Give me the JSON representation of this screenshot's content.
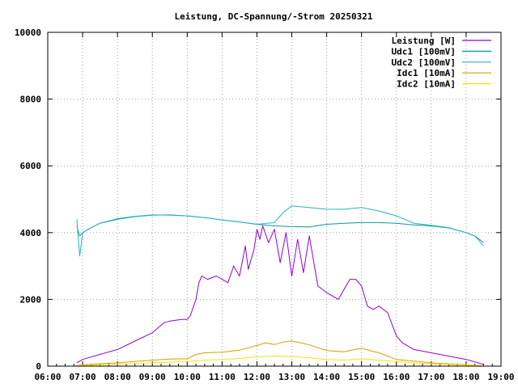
{
  "chart_data": {
    "type": "line",
    "title": "Leistung, DC-Spannung/-Strom 20250321",
    "xlabel": "",
    "ylabel": "",
    "xlim": [
      "06:00",
      "19:00"
    ],
    "ylim": [
      0,
      10000
    ],
    "grid": true,
    "legend_position": "top-right",
    "x_ticks": [
      "06:00",
      "07:00",
      "08:00",
      "09:00",
      "10:00",
      "11:00",
      "12:00",
      "13:00",
      "14:00",
      "15:00",
      "16:00",
      "17:00",
      "18:00",
      "19:00"
    ],
    "y_ticks": [
      "0",
      "2000",
      "4000",
      "6000",
      "8000",
      "10000"
    ],
    "series": [
      {
        "name": "Leistung [W]",
        "color": "#9400d3",
        "x": [
          "06:50",
          "07:00",
          "07:30",
          "08:00",
          "08:30",
          "09:00",
          "09:20",
          "09:30",
          "09:50",
          "10:00",
          "10:05",
          "10:15",
          "10:20",
          "10:25",
          "10:35",
          "10:50",
          "11:00",
          "11:10",
          "11:20",
          "11:30",
          "11:40",
          "11:45",
          "11:55",
          "12:00",
          "12:05",
          "12:10",
          "12:20",
          "12:30",
          "12:40",
          "12:50",
          "13:00",
          "13:10",
          "13:20",
          "13:30",
          "13:45",
          "14:00",
          "14:20",
          "14:40",
          "14:50",
          "15:00",
          "15:10",
          "15:20",
          "15:30",
          "15:45",
          "16:00",
          "16:10",
          "16:30",
          "17:00",
          "17:30",
          "18:00",
          "18:30"
        ],
        "y": [
          100,
          200,
          350,
          500,
          750,
          1000,
          1300,
          1350,
          1400,
          1400,
          1500,
          2000,
          2500,
          2700,
          2600,
          2700,
          2600,
          2500,
          3000,
          2700,
          3600,
          2900,
          3500,
          4100,
          3800,
          4200,
          3700,
          4100,
          3100,
          4000,
          2700,
          3800,
          2800,
          3900,
          2400,
          2200,
          2000,
          2600,
          2600,
          2400,
          1800,
          1700,
          1800,
          1600,
          900,
          700,
          500,
          400,
          300,
          200,
          50
        ]
      },
      {
        "name": "Udc1 [100mV]",
        "color": "#009e9e",
        "x": [
          "06:50",
          "06:55",
          "07:00",
          "07:15",
          "07:30",
          "08:00",
          "08:30",
          "09:00",
          "09:30",
          "10:00",
          "10:30",
          "11:00",
          "11:30",
          "12:00",
          "12:30",
          "13:00",
          "13:30",
          "14:00",
          "14:30",
          "15:00",
          "15:30",
          "16:00",
          "16:30",
          "17:00",
          "17:30",
          "18:00",
          "18:15",
          "18:30"
        ],
        "y": [
          4200,
          3900,
          4000,
          4150,
          4280,
          4400,
          4480,
          4520,
          4530,
          4500,
          4450,
          4380,
          4320,
          4250,
          4200,
          4180,
          4170,
          4250,
          4280,
          4300,
          4300,
          4280,
          4230,
          4200,
          4140,
          4000,
          3900,
          3700
        ]
      },
      {
        "name": "Udc2 [100mV]",
        "color": "#2ab0c8",
        "x": [
          "06:50",
          "06:55",
          "07:00",
          "07:15",
          "07:30",
          "08:00",
          "08:30",
          "09:00",
          "09:30",
          "10:00",
          "10:30",
          "11:00",
          "11:30",
          "12:00",
          "12:30",
          "12:45",
          "13:00",
          "13:30",
          "14:00",
          "14:30",
          "15:00",
          "15:30",
          "16:00",
          "16:30",
          "17:00",
          "17:30",
          "18:00",
          "18:15",
          "18:30"
        ],
        "y": [
          4400,
          3300,
          4000,
          4150,
          4280,
          4420,
          4490,
          4530,
          4520,
          4500,
          4450,
          4380,
          4320,
          4250,
          4300,
          4600,
          4800,
          4750,
          4700,
          4700,
          4750,
          4650,
          4500,
          4280,
          4220,
          4150,
          4000,
          3900,
          3600
        ]
      },
      {
        "name": "Idc1 [10mA]",
        "color": "#d4a000",
        "x": [
          "06:50",
          "07:00",
          "07:30",
          "08:00",
          "08:30",
          "09:00",
          "09:30",
          "10:00",
          "10:15",
          "10:30",
          "11:00",
          "11:30",
          "11:45",
          "12:00",
          "12:15",
          "12:30",
          "12:45",
          "13:00",
          "13:15",
          "13:30",
          "13:45",
          "14:00",
          "14:30",
          "15:00",
          "15:15",
          "15:30",
          "16:00",
          "16:30",
          "17:00",
          "17:30",
          "18:00",
          "18:30"
        ],
        "y": [
          20,
          40,
          70,
          100,
          140,
          180,
          210,
          220,
          350,
          400,
          420,
          480,
          550,
          620,
          700,
          650,
          720,
          750,
          700,
          640,
          550,
          470,
          430,
          540,
          460,
          400,
          200,
          150,
          100,
          70,
          40,
          10
        ]
      },
      {
        "name": "Idc2 [10mA]",
        "color": "#ffe000",
        "x": [
          "06:50",
          "07:00",
          "07:30",
          "08:00",
          "08:30",
          "09:00",
          "09:30",
          "10:00",
          "10:30",
          "11:00",
          "11:30",
          "12:00",
          "12:30",
          "13:00",
          "13:30",
          "14:00",
          "14:30",
          "15:00",
          "15:30",
          "16:00",
          "16:30",
          "17:00",
          "17:30",
          "18:00",
          "18:30"
        ],
        "y": [
          10,
          20,
          40,
          60,
          80,
          100,
          120,
          140,
          180,
          200,
          230,
          280,
          300,
          290,
          250,
          200,
          180,
          220,
          180,
          140,
          100,
          70,
          50,
          30,
          10
        ]
      }
    ]
  }
}
